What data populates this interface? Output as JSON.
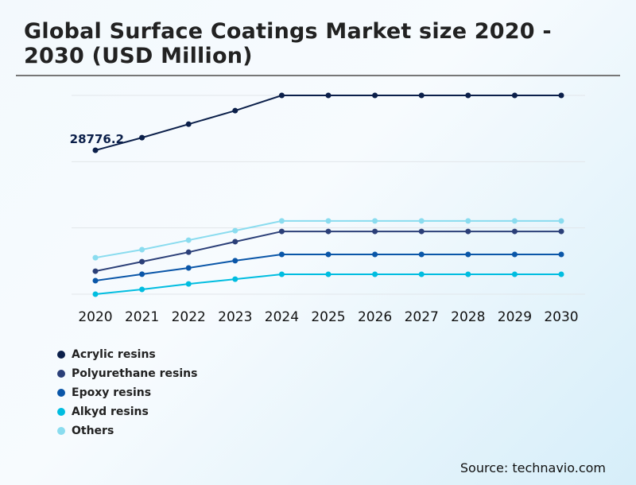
{
  "chart_data": {
    "type": "line",
    "title": "Global Surface Coatings Market size 2020 - 2030 (USD Million)",
    "xlabel": "",
    "ylabel": "",
    "categories": [
      "2020",
      "2021",
      "2022",
      "2023",
      "2024",
      "2025",
      "2026",
      "2027",
      "2028",
      "2029",
      "2030"
    ],
    "ylim": [
      0,
      39750
    ],
    "grid": true,
    "legend_position": "bottom-left",
    "series": [
      {
        "name": "Acrylic resins",
        "color": "#0b1f4a",
        "values": [
          28776.2,
          31300,
          34000,
          36700,
          39750,
          39750,
          39750,
          39750,
          39750,
          39750,
          39750
        ]
      },
      {
        "name": "Polyurethane resins",
        "color": "#2b3f78",
        "values": [
          4600,
          6500,
          8400,
          10500,
          12550,
          12550,
          12550,
          12550,
          12550,
          12550,
          12550
        ]
      },
      {
        "name": "Epoxy resins",
        "color": "#0a56a8",
        "values": [
          2700,
          4000,
          5250,
          6700,
          7950,
          7950,
          7950,
          7950,
          7950,
          7950,
          7950
        ]
      },
      {
        "name": "Alkyd resins",
        "color": "#00bde0",
        "values": [
          0,
          950,
          2050,
          3000,
          3980,
          3980,
          3980,
          3980,
          3980,
          3980,
          3980
        ]
      },
      {
        "name": "Others",
        "color": "#8adcef",
        "values": [
          7300,
          8900,
          10800,
          12700,
          14650,
          14650,
          14650,
          14650,
          14650,
          14650,
          14650
        ]
      }
    ],
    "data_labels": [
      {
        "series": "Acrylic resins",
        "category": "2020",
        "text": "28776.2"
      }
    ]
  },
  "source": "Source: technavio.com"
}
